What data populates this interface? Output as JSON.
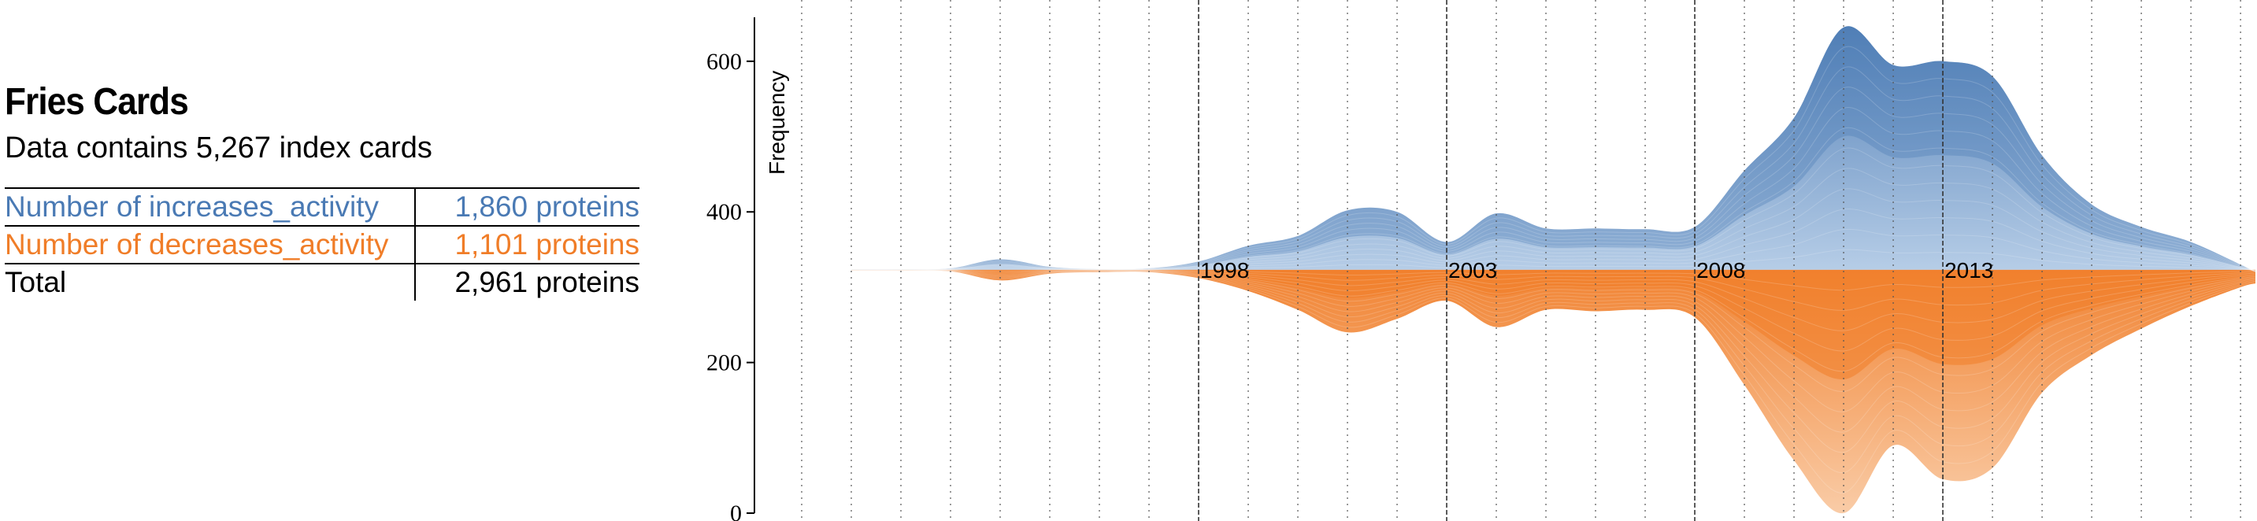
{
  "sidebar": {
    "title": "Fries Cards",
    "subtitle": "Data contains 5,267 index cards",
    "rows": [
      {
        "label": "Number of increases_activity",
        "value": "1,860 proteins"
      },
      {
        "label": "Number of decreases_activity",
        "value": "1,101 proteins"
      },
      {
        "label": "Total",
        "value": "2,961 proteins"
      }
    ]
  },
  "colors": {
    "increases": "#4a7ab4",
    "increases_light": "#b3cbe6",
    "decreases": "#f07d28",
    "decreases_light": "#f9c9a2"
  },
  "chart_data": {
    "type": "area",
    "ylabel": "Frequency",
    "ylim": [
      0,
      650
    ],
    "yticks": [
      0,
      200,
      400,
      600
    ],
    "xlim": [
      1989,
      2019.3
    ],
    "year_labels": [
      {
        "year": 1998,
        "text": "1998"
      },
      {
        "year": 2003,
        "text": "2003"
      },
      {
        "year": 2008,
        "text": "2008"
      },
      {
        "year": 2013,
        "text": "2013"
      }
    ],
    "major_gridlines": [
      1998,
      2003,
      2008,
      2013
    ],
    "minor_gridlines": [
      1990,
      1991,
      1992,
      1993,
      1994,
      1995,
      1996,
      1997,
      1999,
      2000,
      2001,
      2002,
      2004,
      2005,
      2006,
      2007,
      2009,
      2010,
      2011,
      2012,
      2014,
      2015,
      2016,
      2017,
      2018,
      2019
    ],
    "baseline": 323,
    "x": [
      1991,
      1992,
      1993,
      1994,
      1995,
      1996,
      1997,
      1998,
      1999,
      2000,
      2001,
      2002,
      2003,
      2004,
      2005,
      2006,
      2007,
      2008,
      2009,
      2010,
      2011,
      2012,
      2013,
      2014,
      2015,
      2016,
      2017,
      2018,
      2019,
      2019.3
    ],
    "series": [
      {
        "name": "increases_activity",
        "top": [
          324,
          324,
          325,
          337,
          327,
          324,
          325,
          334,
          355,
          368,
          402,
          400,
          360,
          398,
          378,
          378,
          377,
          380,
          455,
          525,
          645,
          595,
          600,
          580,
          475,
          410,
          380,
          360,
          330,
          320
        ]
      },
      {
        "name": "decreases_activity",
        "bottom": [
          322,
          322,
          321,
          309,
          318,
          320,
          320,
          312,
          295,
          270,
          240,
          258,
          282,
          247,
          270,
          268,
          270,
          260,
          170,
          70,
          0,
          90,
          45,
          60,
          160,
          210,
          245,
          275,
          300,
          305
        ]
      }
    ]
  }
}
